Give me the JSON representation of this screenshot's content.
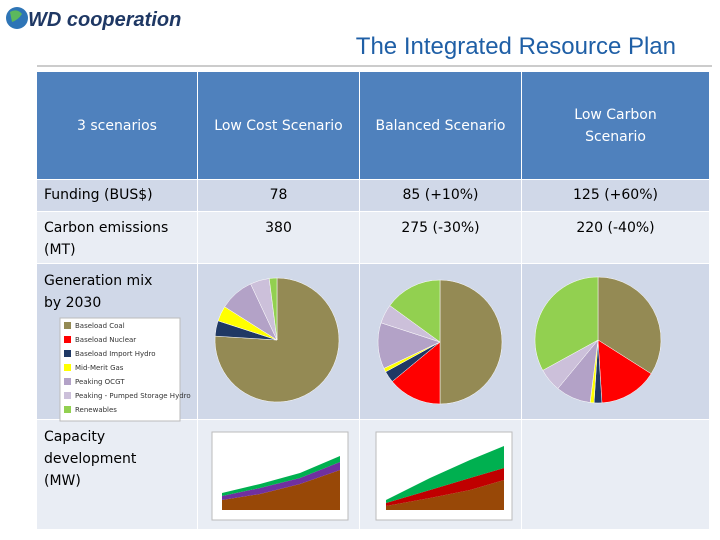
{
  "header": {
    "logo": "WD cooperation",
    "title": "The Integrated Resource Plan"
  },
  "table": {
    "columns": [
      "3 scenarios",
      "Low Cost Scenario",
      "Balanced Scenario",
      "Low Carbon Scenario"
    ],
    "rows": [
      [
        "Funding (BUS$)",
        78,
        "85 (+10%)",
        "125 (+60%)"
      ],
      [
        "Carbon emissions (MT)",
        380,
        "275 (-30%)",
        "220 (-40%)"
      ]
    ],
    "generation_mix": {
      "label": "Generation mix by 2030",
      "legend": [
        {
          "name": "Baseload Coal",
          "color": "#948a54"
        },
        {
          "name": "Baseload Nuclear",
          "color": "#ff0000"
        },
        {
          "name": "Baseload Import Hydro",
          "color": "#1f3864"
        },
        {
          "name": "Mid-Merit Gas",
          "color": "#ffff00"
        },
        {
          "name": "Peaking OCGT",
          "color": "#b3a2c7"
        },
        {
          "name": "Peaking - Pumped Storage Hydro",
          "color": "#ccc0da"
        },
        {
          "name": "Renewables",
          "color": "#92d050"
        }
      ],
      "pies": [
        {
          "values": [
            76,
            0,
            4,
            4,
            9,
            5,
            2
          ]
        },
        {
          "values": [
            50,
            14,
            3,
            1,
            12,
            5,
            15
          ]
        },
        {
          "values": [
            34,
            15,
            2,
            1,
            9,
            6,
            33
          ]
        }
      ]
    },
    "capacity": {
      "label": "Capacity development (MW)"
    }
  }
}
